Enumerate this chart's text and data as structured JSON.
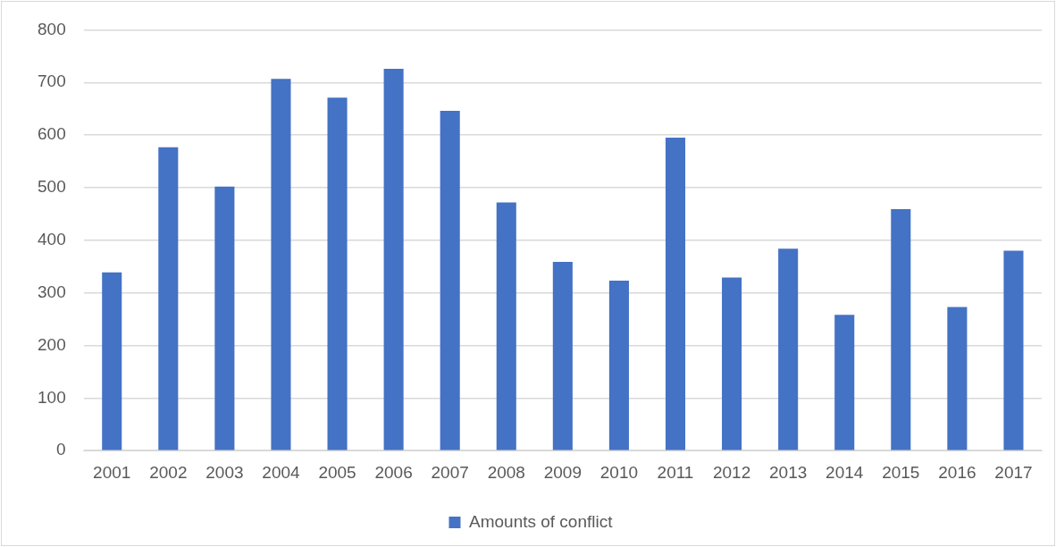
{
  "chart_data": {
    "type": "bar",
    "categories": [
      "2001",
      "2002",
      "2003",
      "2004",
      "2005",
      "2006",
      "2007",
      "2008",
      "2009",
      "2010",
      "2011",
      "2012",
      "2013",
      "2014",
      "2015",
      "2016",
      "2017"
    ],
    "series": [
      {
        "name": "Amounts of conflict",
        "color": "#4472c4",
        "values": [
          339,
          577,
          502,
          707,
          671,
          726,
          646,
          472,
          359,
          323,
          595,
          329,
          384,
          258,
          459,
          273,
          380
        ]
      }
    ],
    "ylim": [
      0,
      800
    ],
    "yticks": [
      0,
      100,
      200,
      300,
      400,
      500,
      600,
      700,
      800
    ],
    "grid": "y",
    "legend": "bottom"
  }
}
